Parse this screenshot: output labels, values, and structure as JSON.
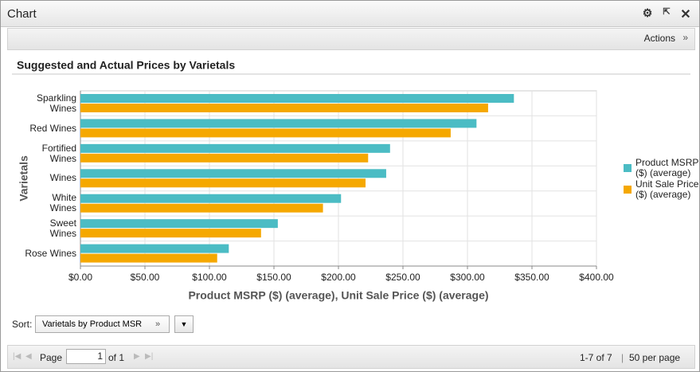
{
  "window": {
    "title": "Chart"
  },
  "toolbar": {
    "actions": "Actions"
  },
  "chart_data": {
    "type": "bar",
    "orientation": "horizontal",
    "title": "Suggested and Actual Prices by Varietals",
    "x_label": "Product MSRP ($) (average), Unit Sale Price ($) (average)",
    "y_label": "Varietals",
    "categories": [
      "Sparkling Wines",
      "Red Wines",
      "Fortified Wines",
      "Wines",
      "White Wines",
      "Sweet Wines",
      "Rose Wines"
    ],
    "series": [
      {
        "name": "Product MSRP ($) (average)",
        "color": "#4bbcc4",
        "values": [
          336,
          307,
          240,
          237,
          202,
          153,
          115
        ]
      },
      {
        "name": "Unit Sale Price ($) (average)",
        "color": "#f5a800",
        "values": [
          316,
          287,
          223,
          221,
          188,
          140,
          106
        ]
      }
    ],
    "xlim": [
      0,
      400
    ],
    "xticks": [
      {
        "value": 0,
        "label": "$0.00"
      },
      {
        "value": 50,
        "label": "$50.00"
      },
      {
        "value": 100,
        "label": "$100.00"
      },
      {
        "value": 150,
        "label": "$150.00"
      },
      {
        "value": 200,
        "label": "$200.00"
      },
      {
        "value": 250,
        "label": "$250.00"
      },
      {
        "value": 300,
        "label": "$300.00"
      },
      {
        "value": 350,
        "label": "$350.00"
      },
      {
        "value": 400,
        "label": "$400.00"
      }
    ],
    "grid": true,
    "legend": "right"
  },
  "sort": {
    "label": "Sort:",
    "value": "Varietals by Product MSR"
  },
  "pager": {
    "page_label": "Page",
    "page": 1,
    "of": "of 1",
    "range": "1-7 of 7",
    "per_page": "50 per page"
  }
}
